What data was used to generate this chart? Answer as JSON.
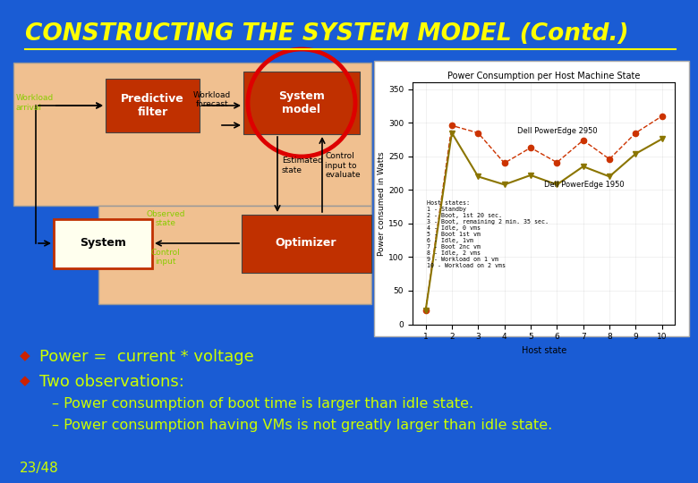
{
  "title": "CONSTRUCTING THE SYSTEM MODEL (Contd.)",
  "title_color": "#FFFF00",
  "title_fontsize": 19,
  "background_color": "#1a5cd4",
  "bullet_color": "#cc2200",
  "text_color": "#CCFF00",
  "sub_text_color": "#CCFF00",
  "bullet1": "Power =  current * voltage",
  "bullet2": "Two observations:",
  "sub1": "– Power consumption of boot time is larger than idle state.",
  "sub2": "– Power consumption having VMs is not greatly larger than idle state.",
  "page_number": "23/48",
  "diagram_box_color": "#f0c090",
  "dark_red": "#c03000",
  "system_box_color": "#ffffcc",
  "green_label": "#88cc00",
  "chart_x": [
    1,
    2,
    3,
    4,
    5,
    6,
    7,
    8,
    9,
    10
  ],
  "y_2950": [
    20,
    296,
    285,
    240,
    263,
    241,
    274,
    246,
    285,
    310
  ],
  "y_1950": [
    20,
    285,
    220,
    208,
    222,
    208,
    235,
    220,
    254,
    276
  ],
  "chart_title": "Power Consumption per Host Machine State",
  "label_2950": "Dell PowerEdge 2950",
  "label_1950": "Dell PowerEdge 1950",
  "host_states_text": "Host states:\n1 - Standby\n2 - Boot, 1st 20 sec.\n3 - Boot, remaining 2 min. 35 sec.\n4 - Idle, 0 vms\n5 - Boot 1st vm\n6 - Idle, 1vm\n7 - Boot 2nc vm\n8 - Idle, 2 vms\n9 - Workload on 1 vm\n10 - Workload on 2 vms"
}
